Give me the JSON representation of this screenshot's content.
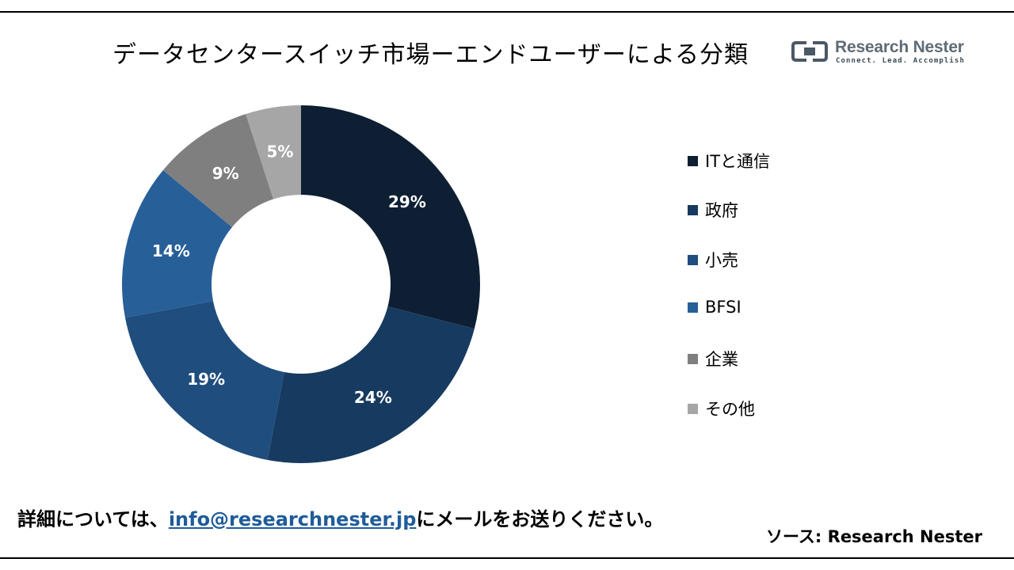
{
  "title": "データセンタースイッチ市場ーエンドユーザーによる分類",
  "logo": {
    "name": "Research Nester",
    "tagline": "Connect. Lead. Accomplish"
  },
  "chart_data": {
    "type": "pie",
    "subtype": "donut",
    "categories": [
      "ITと通信",
      "政府",
      "小売",
      "BFSI",
      "企業",
      "その他"
    ],
    "values": [
      29,
      24,
      19,
      14,
      9,
      5
    ],
    "labels": [
      "29%",
      "24%",
      "19%",
      "14%",
      "9%",
      "5%"
    ],
    "colors": [
      "#0e1f33",
      "#173a60",
      "#1f4d7e",
      "#275f98",
      "#7f7f7f",
      "#a6a6a6"
    ],
    "legend_position": "right"
  },
  "footer": {
    "prefix": "詳細については、",
    "email": "info@researchnester.jp",
    "suffix": "にメールをお送りください。"
  },
  "source": "ソース: Research Nester"
}
